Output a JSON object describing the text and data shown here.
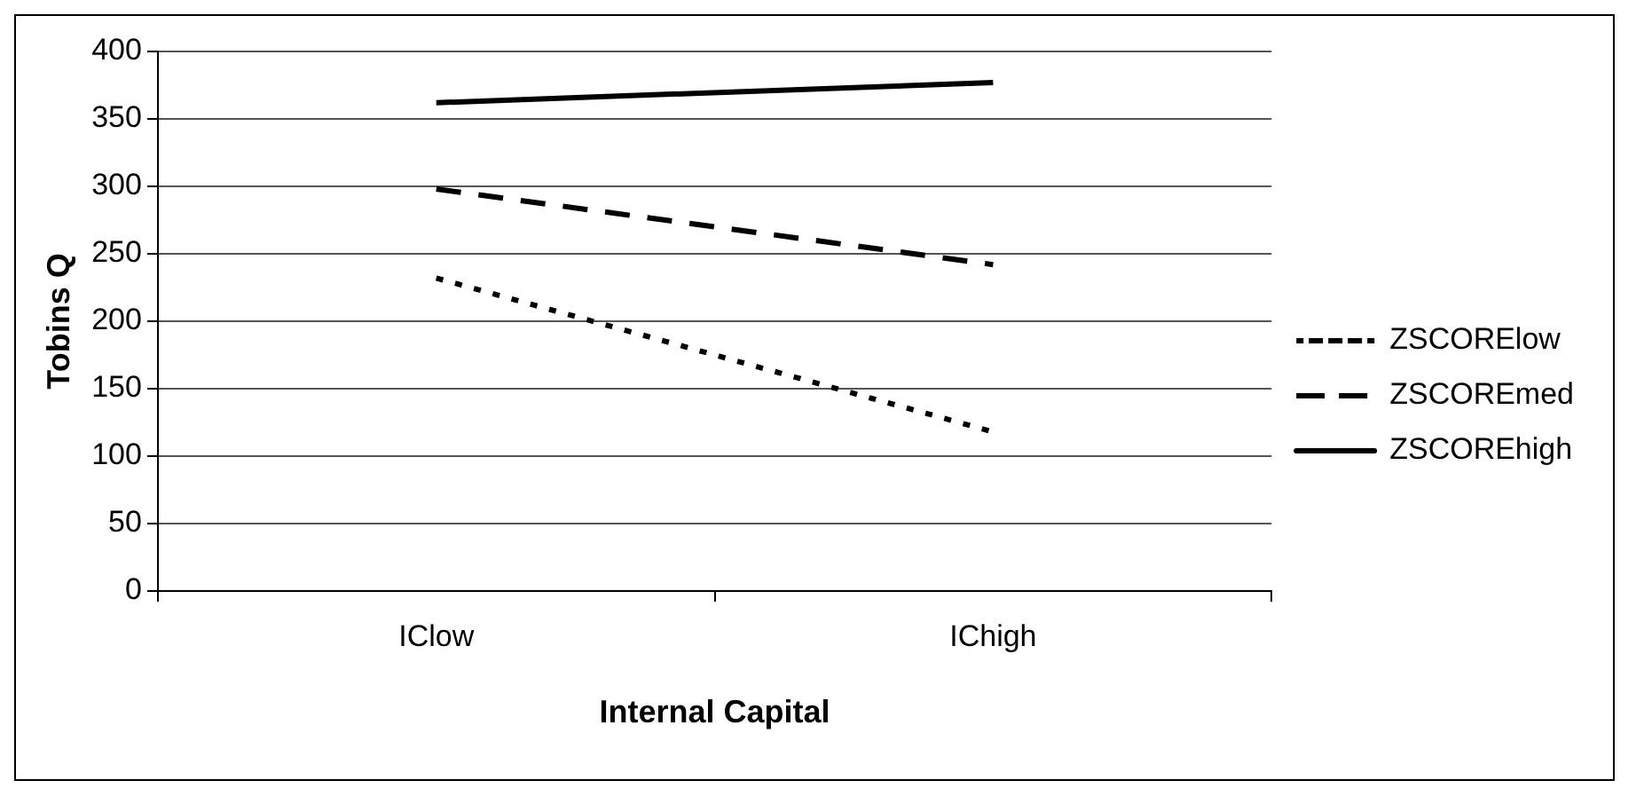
{
  "chart_data": {
    "type": "line",
    "xlabel": "Internal Capital",
    "ylabel": "Tobins Q",
    "categories": [
      "IClow",
      "IChigh"
    ],
    "series": [
      {
        "name": "ZSCORElow",
        "color": "#000000",
        "line_style": "dotted",
        "values": [
          232,
          118
        ]
      },
      {
        "name": "ZSCOREmed",
        "color": "#000000",
        "line_style": "dashed",
        "values": [
          298,
          242
        ]
      },
      {
        "name": "ZSCOREhigh",
        "color": "#000000",
        "line_style": "solid",
        "values": [
          362,
          377
        ]
      }
    ],
    "ylim": [
      0,
      400
    ],
    "yticks": [
      0,
      50,
      100,
      150,
      200,
      250,
      300,
      350,
      400
    ],
    "grid": "y",
    "legend": "right",
    "marker": "none"
  }
}
